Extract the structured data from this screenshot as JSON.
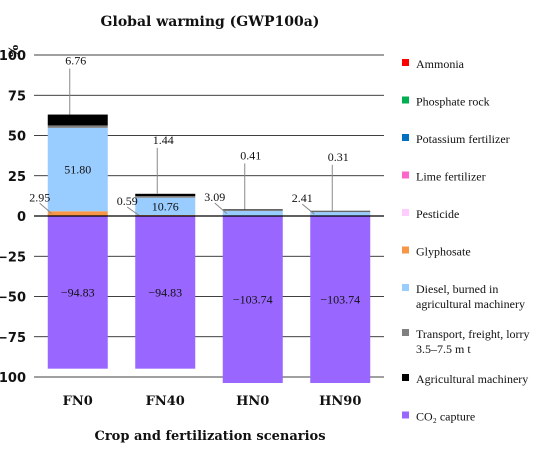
{
  "chart_data": {
    "type": "bar",
    "stacked": true,
    "title": "Global warming (GWP100a)",
    "xlabel": "Crop and fertilization scenarios",
    "ylabel": "%",
    "ylim": [
      -100,
      100
    ],
    "yticks": [
      "100",
      "75",
      "50",
      "25",
      "0",
      "−25",
      "−50",
      "−75",
      "−100"
    ],
    "grid": true,
    "legend_position": "right",
    "categories": [
      "FN0",
      "FN40",
      "HN0",
      "HN90"
    ],
    "series": [
      {
        "name": "Ammonia",
        "color": "#ff0000",
        "values": [
          0,
          0,
          0,
          0
        ]
      },
      {
        "name": "Phosphate rock",
        "color": "#00b050",
        "values": [
          0,
          0,
          0,
          0
        ]
      },
      {
        "name": "Potassium fertilizer",
        "color": "#0070c0",
        "values": [
          0,
          0,
          0,
          0
        ]
      },
      {
        "name": "Lime fertilizer",
        "color": "#ff66cc",
        "values": [
          0,
          0,
          0,
          0
        ]
      },
      {
        "name": "Pesticide",
        "color": "#ffccff",
        "values": [
          0,
          0,
          0,
          0
        ]
      },
      {
        "name": "Glyphosate",
        "color": "#f79646",
        "values": [
          2.95,
          0.59,
          0,
          0
        ]
      },
      {
        "name": "Diesel, burned in agricultural machinery",
        "color": "#99ccff",
        "values": [
          51.8,
          10.76,
          3.09,
          2.41
        ]
      },
      {
        "name": "Transport, freight, lorry 3.5–7.5 m t",
        "color": "#808080",
        "values": [
          1.5,
          1.0,
          0.6,
          0.5
        ]
      },
      {
        "name": "Agricultural machinery",
        "color": "#000000",
        "values": [
          6.76,
          1.44,
          0.41,
          0.31
        ]
      },
      {
        "name": "CO₂ capture",
        "color": "#9966ff",
        "values": [
          -94.83,
          -94.83,
          -103.74,
          -103.74
        ]
      }
    ],
    "legend_lines": [
      [
        "Ammonia"
      ],
      [
        "Phosphate rock"
      ],
      [
        "Potassium fertilizer"
      ],
      [
        "Lime fertilizer"
      ],
      [
        "Pesticide"
      ],
      [
        "Glyphosate"
      ],
      [
        "Diesel, burned in",
        "agricultural machinery"
      ],
      [
        "Transport, freight, lorry",
        "3.5–7.5 m t"
      ],
      [
        "Agricultural machinery"
      ],
      [
        "CO₂ capture"
      ]
    ],
    "data_labels": [
      {
        "category": "FN0",
        "series": "Glyphosate",
        "text": "2.95"
      },
      {
        "category": "FN0",
        "series": "Diesel, burned in agricultural machinery",
        "text": "51.80"
      },
      {
        "category": "FN0",
        "series": "Agricultural machinery",
        "text": "6.76"
      },
      {
        "category": "FN0",
        "series": "CO₂ capture",
        "text": "−94.83"
      },
      {
        "category": "FN40",
        "series": "Glyphosate",
        "text": "0.59"
      },
      {
        "category": "FN40",
        "series": "Diesel, burned in agricultural machinery",
        "text": "10.76"
      },
      {
        "category": "FN40",
        "series": "Agricultural machinery",
        "text": "1.44"
      },
      {
        "category": "FN40",
        "series": "CO₂ capture",
        "text": "−94.83"
      },
      {
        "category": "HN0",
        "series": "Diesel, burned in agricultural machinery",
        "text": "3.09"
      },
      {
        "category": "HN0",
        "series": "Agricultural machinery",
        "text": "0.41"
      },
      {
        "category": "HN0",
        "series": "CO₂ capture",
        "text": "−103.74"
      },
      {
        "category": "HN90",
        "series": "Diesel, burned in agricultural machinery",
        "text": "2.41"
      },
      {
        "category": "HN90",
        "series": "Agricultural machinery",
        "text": "0.31"
      },
      {
        "category": "HN90",
        "series": "CO₂ capture",
        "text": "−103.74"
      }
    ]
  }
}
